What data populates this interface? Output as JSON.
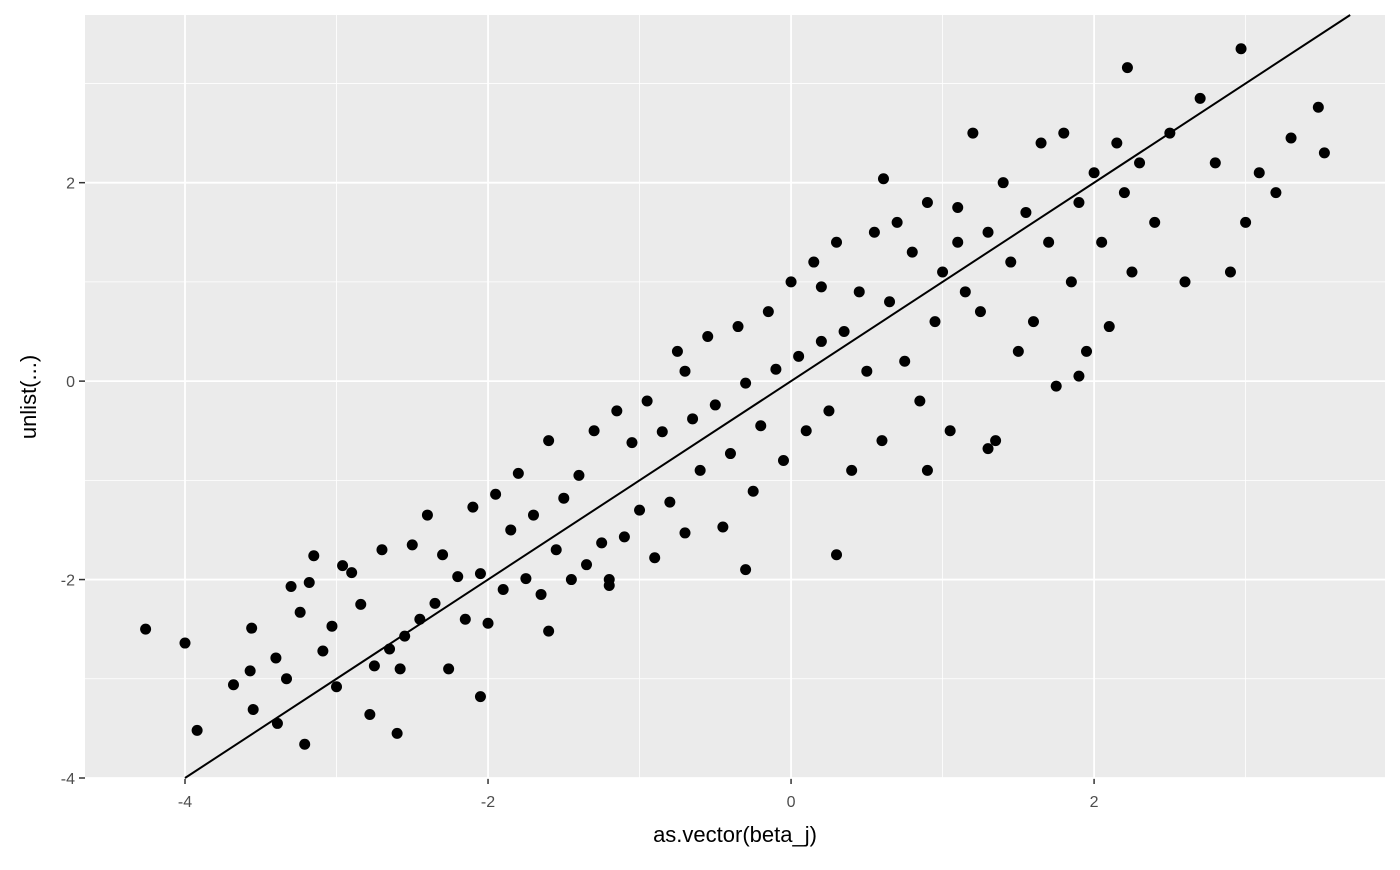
{
  "chart_data": {
    "type": "scatter",
    "x_label": "as.vector(beta_j)",
    "y_label": "unlist(...)",
    "xlim": [
      -4.66,
      3.92
    ],
    "ylim": [
      -4.0,
      3.69
    ],
    "xticks": [
      -4,
      -2,
      0,
      2
    ],
    "yticks": [
      -4,
      -2,
      0,
      2
    ],
    "xminor": [
      -3,
      -1,
      1,
      3
    ],
    "yminor": [
      -3,
      -1,
      1,
      3
    ],
    "grid": true,
    "color": "#000000",
    "abline": {
      "slope": 1,
      "intercept": 0,
      "color": "#000000"
    },
    "x": [
      -4.26,
      -4.0,
      -3.92,
      -3.68,
      -3.56,
      -3.55,
      -3.57,
      -3.4,
      -3.39,
      -3.33,
      -3.3,
      -3.24,
      -3.21,
      -3.18,
      -3.15,
      -3.09,
      -3.03,
      -3.0,
      -2.96,
      -2.9,
      -2.84,
      -2.78,
      -2.75,
      -2.7,
      -2.65,
      -2.58,
      -2.55,
      -2.5,
      -2.45,
      -2.4,
      -2.35,
      -2.3,
      -2.26,
      -2.2,
      -2.15,
      -2.1,
      -2.05,
      -2.0,
      -1.95,
      -1.9,
      -1.85,
      -1.8,
      -1.75,
      -1.7,
      -1.65,
      -1.6,
      -1.55,
      -1.5,
      -1.45,
      -1.4,
      -1.35,
      -1.3,
      -1.25,
      -1.2,
      -1.15,
      -1.1,
      -1.05,
      -1.0,
      -0.95,
      -0.9,
      -0.85,
      -0.8,
      -0.75,
      -0.7,
      -0.65,
      -0.6,
      -0.55,
      -0.5,
      -0.45,
      -0.4,
      -0.35,
      -0.3,
      -0.25,
      -0.2,
      -0.15,
      -0.1,
      -0.05,
      0.0,
      0.05,
      0.1,
      0.15,
      0.2,
      0.25,
      0.3,
      0.35,
      0.4,
      0.45,
      0.5,
      0.55,
      0.6,
      0.61,
      0.65,
      0.7,
      0.75,
      0.8,
      0.85,
      0.9,
      0.95,
      1.0,
      1.05,
      1.1,
      1.15,
      1.2,
      1.25,
      1.3,
      1.35,
      1.4,
      1.45,
      1.5,
      1.55,
      1.6,
      1.65,
      1.7,
      1.75,
      1.8,
      1.85,
      1.9,
      1.95,
      2.0,
      2.05,
      2.1,
      2.15,
      2.2,
      2.22,
      2.25,
      2.3,
      2.4,
      2.5,
      2.6,
      2.7,
      2.8,
      2.9,
      2.97,
      3.0,
      3.09,
      3.2,
      3.3,
      3.48,
      3.52,
      -2.05,
      -1.2,
      -0.3,
      0.3,
      1.3,
      -0.7,
      0.9,
      1.9,
      -1.6,
      0.2,
      1.1,
      -2.6
    ],
    "y": [
      -2.5,
      -2.64,
      -3.52,
      -3.06,
      -2.49,
      -3.31,
      -2.92,
      -2.79,
      -3.45,
      -3.0,
      -2.07,
      -2.33,
      -3.66,
      -2.03,
      -1.76,
      -2.72,
      -2.47,
      -3.08,
      -1.86,
      -1.93,
      -2.25,
      -3.36,
      -2.87,
      -1.7,
      -2.7,
      -2.9,
      -2.57,
      -1.65,
      -2.4,
      -1.35,
      -2.24,
      -1.75,
      -2.9,
      -1.97,
      -2.4,
      -1.27,
      -1.94,
      -2.44,
      -1.14,
      -2.1,
      -1.5,
      -0.93,
      -1.99,
      -1.35,
      -2.15,
      -0.6,
      -1.7,
      -1.18,
      -2.0,
      -0.95,
      -1.85,
      -0.5,
      -1.63,
      -2.06,
      -0.3,
      -1.57,
      -0.62,
      -1.3,
      -0.2,
      -1.78,
      -0.51,
      -1.22,
      0.3,
      -1.53,
      -0.38,
      -0.9,
      0.45,
      -0.24,
      -1.47,
      -0.73,
      0.55,
      -0.02,
      -1.11,
      -0.45,
      0.7,
      0.12,
      -0.8,
      1.0,
      0.25,
      -0.5,
      1.2,
      0.4,
      -0.3,
      1.4,
      0.5,
      -0.9,
      0.9,
      0.1,
      1.5,
      -0.6,
      2.04,
      0.8,
      1.6,
      0.2,
      1.3,
      -0.2,
      1.8,
      0.6,
      1.1,
      -0.5,
      1.75,
      0.9,
      2.5,
      0.7,
      1.5,
      -0.6,
      2.0,
      1.2,
      0.3,
      1.7,
      0.6,
      2.4,
      1.4,
      -0.05,
      2.5,
      1.0,
      1.8,
      0.3,
      2.1,
      1.4,
      0.55,
      2.4,
      1.9,
      3.16,
      1.1,
      2.2,
      1.6,
      2.5,
      1.0,
      2.85,
      2.2,
      1.1,
      3.35,
      1.6,
      2.1,
      1.9,
      2.45,
      2.76,
      2.3,
      -3.18,
      -2.0,
      -1.9,
      -1.75,
      -0.68,
      0.1,
      -0.9,
      0.05,
      -2.52,
      0.95,
      1.4,
      -3.55
    ]
  }
}
